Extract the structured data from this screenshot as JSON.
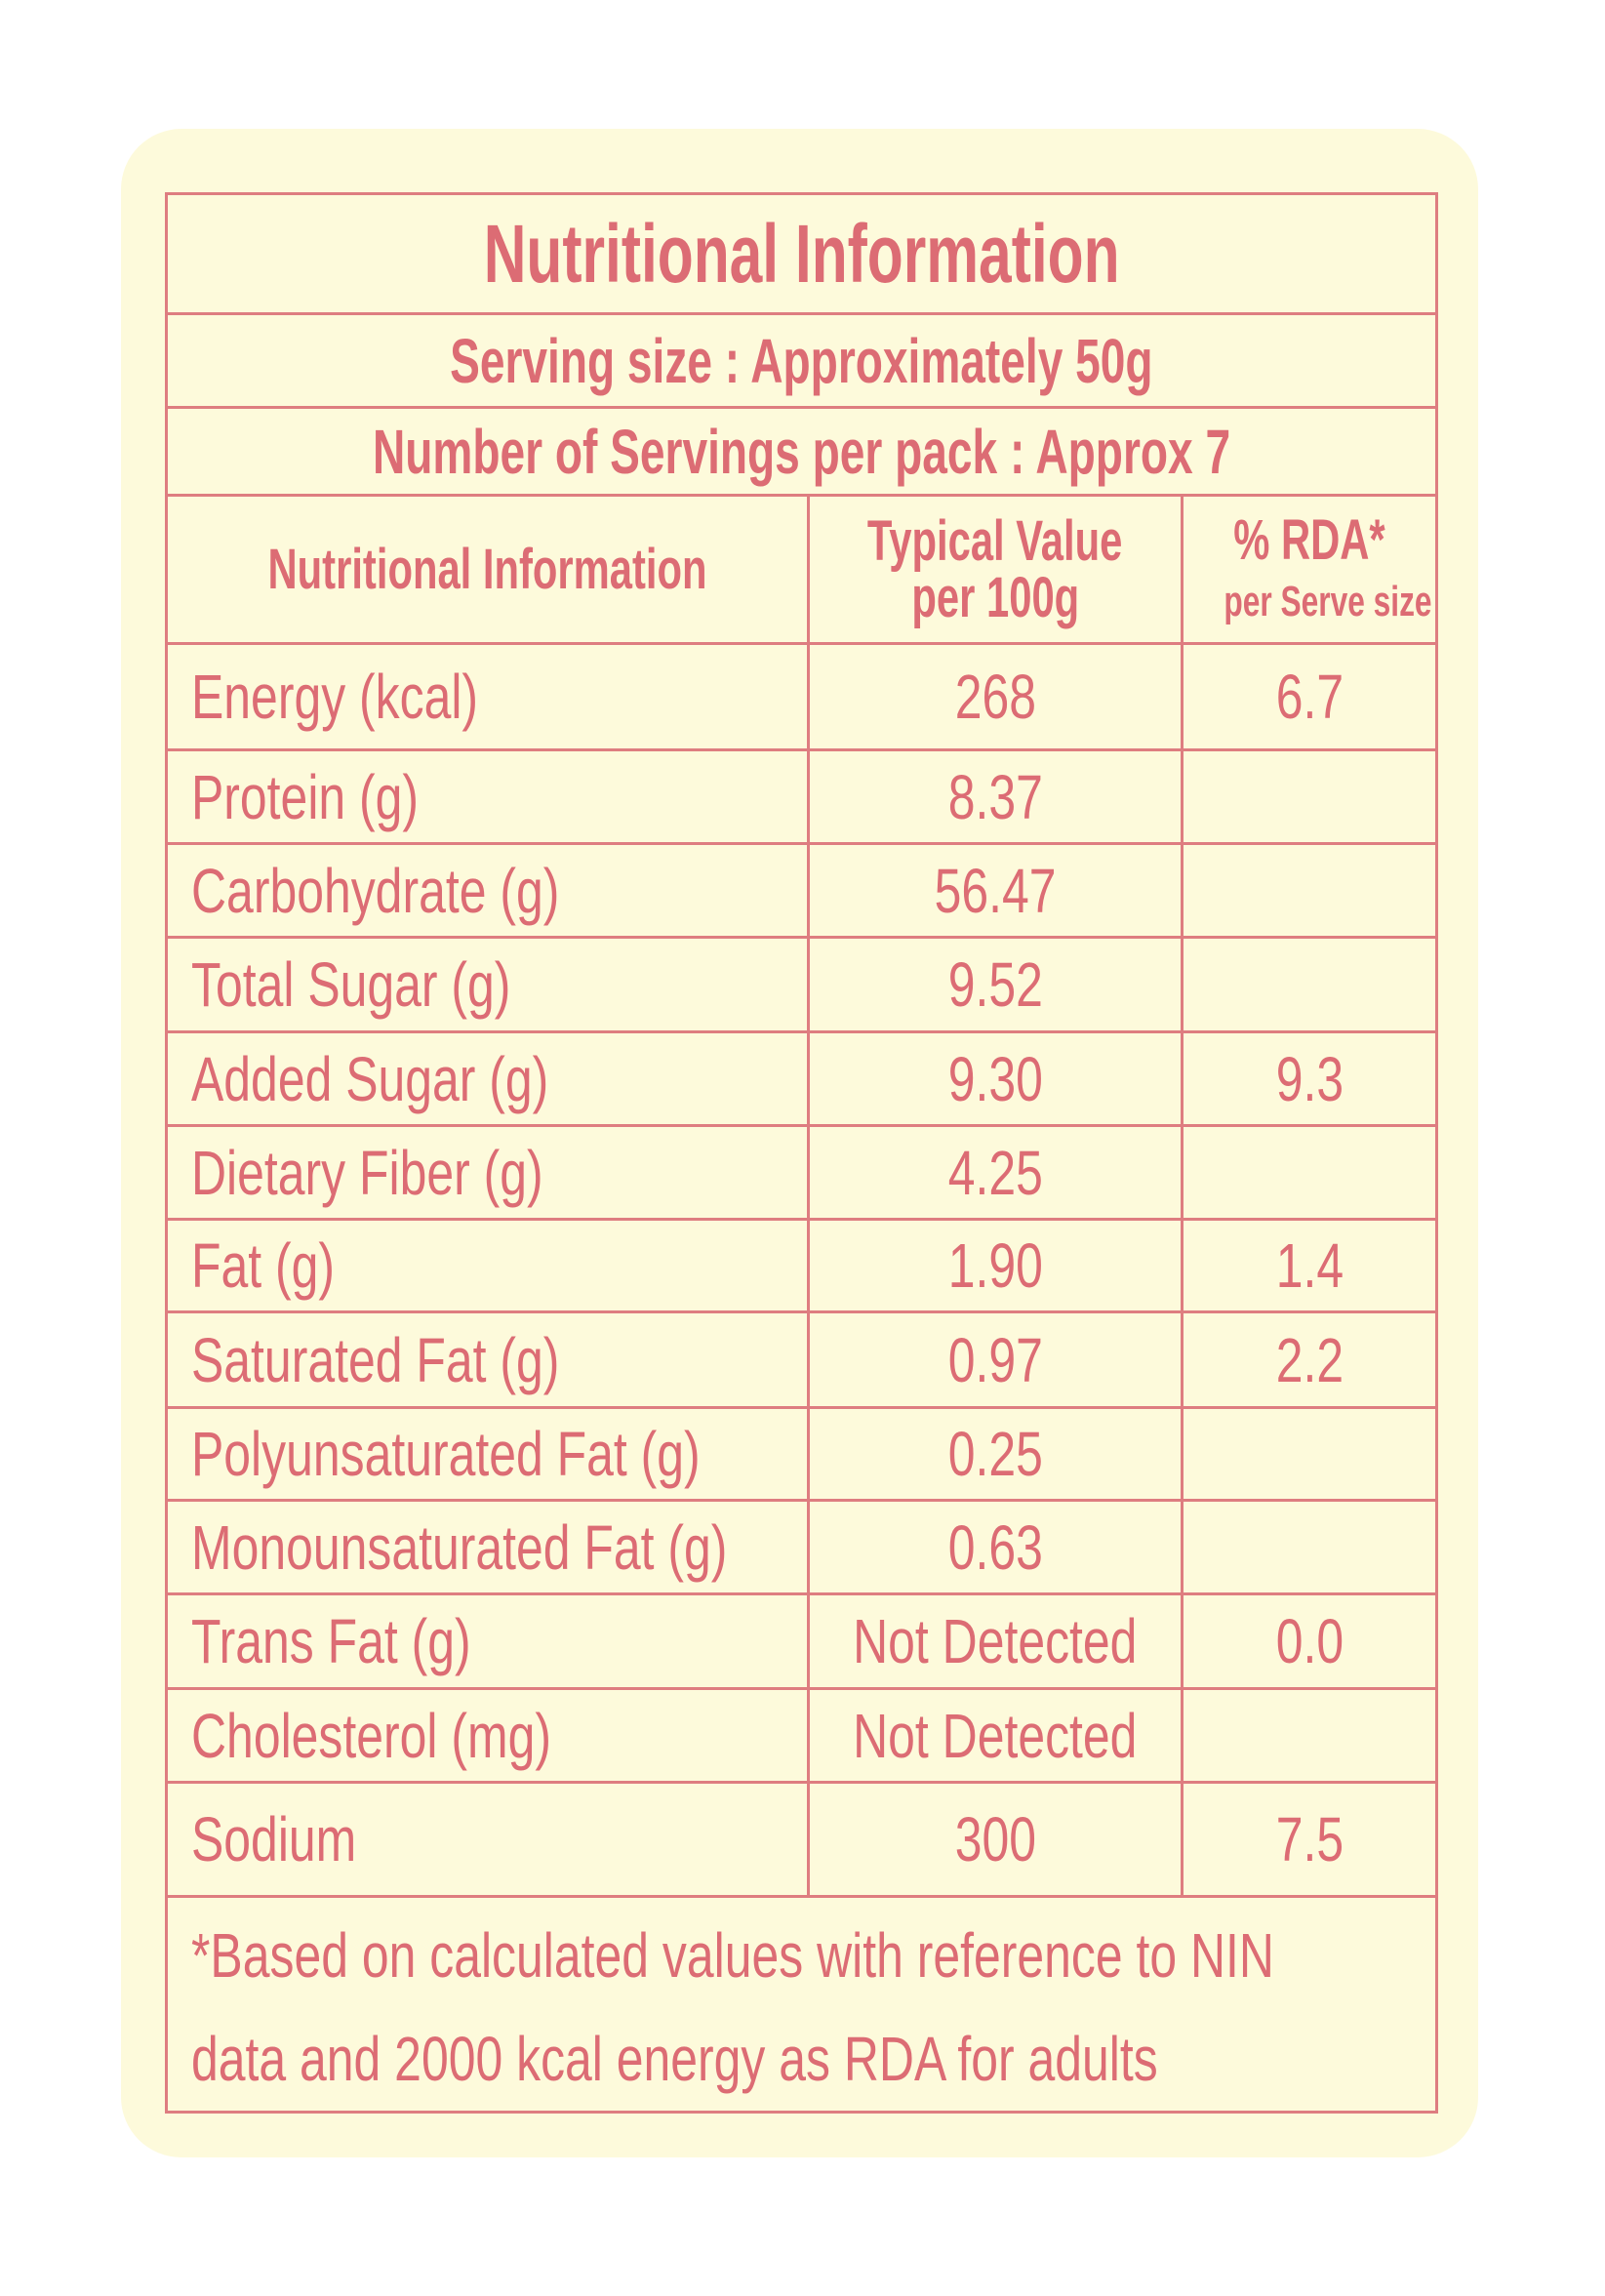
{
  "title": "Nutritional Information",
  "serving_size": "Serving size : Approximately 50g",
  "servings_per_pack": "Number of Servings per pack : Approx 7",
  "headers": {
    "nutrient": "Nutritional Information",
    "typical_line1": "Typical Value",
    "typical_line2": "per 100g",
    "rda_line1": "% RDA*",
    "rda_line2": "per Serve size"
  },
  "rows": [
    {
      "name": "Energy (kcal)",
      "value": "268",
      "rda": "6.7"
    },
    {
      "name": "Protein (g)",
      "value": "8.37",
      "rda": ""
    },
    {
      "name": "Carbohydrate (g)",
      "value": "56.47",
      "rda": ""
    },
    {
      "name": "Total Sugar (g)",
      "value": "9.52",
      "rda": ""
    },
    {
      "name": "Added Sugar (g)",
      "value": "9.30",
      "rda": "9.3"
    },
    {
      "name": "Dietary Fiber (g)",
      "value": "4.25",
      "rda": ""
    },
    {
      "name": "Fat (g)",
      "value": "1.90",
      "rda": "1.4"
    },
    {
      "name": "Saturated Fat (g)",
      "value": "0.97",
      "rda": "2.2"
    },
    {
      "name": "Polyunsaturated Fat (g)",
      "value": "0.25",
      "rda": ""
    },
    {
      "name": "Monounsaturated Fat (g)",
      "value": "0.63",
      "rda": ""
    },
    {
      "name": "Trans Fat (g)",
      "value": "Not Detected",
      "rda": "0.0"
    },
    {
      "name": "Cholesterol (mg)",
      "value": "Not Detected",
      "rda": ""
    },
    {
      "name": "Sodium",
      "value": "300",
      "rda": "7.5"
    }
  ],
  "footnote_line1": "*Based on calculated values with reference to NIN",
  "footnote_line2": "data and 2000 kcal energy as RDA for adults",
  "colors": {
    "text": "#dc6c74",
    "border": "#de7d80",
    "background": "#fdfadb"
  }
}
